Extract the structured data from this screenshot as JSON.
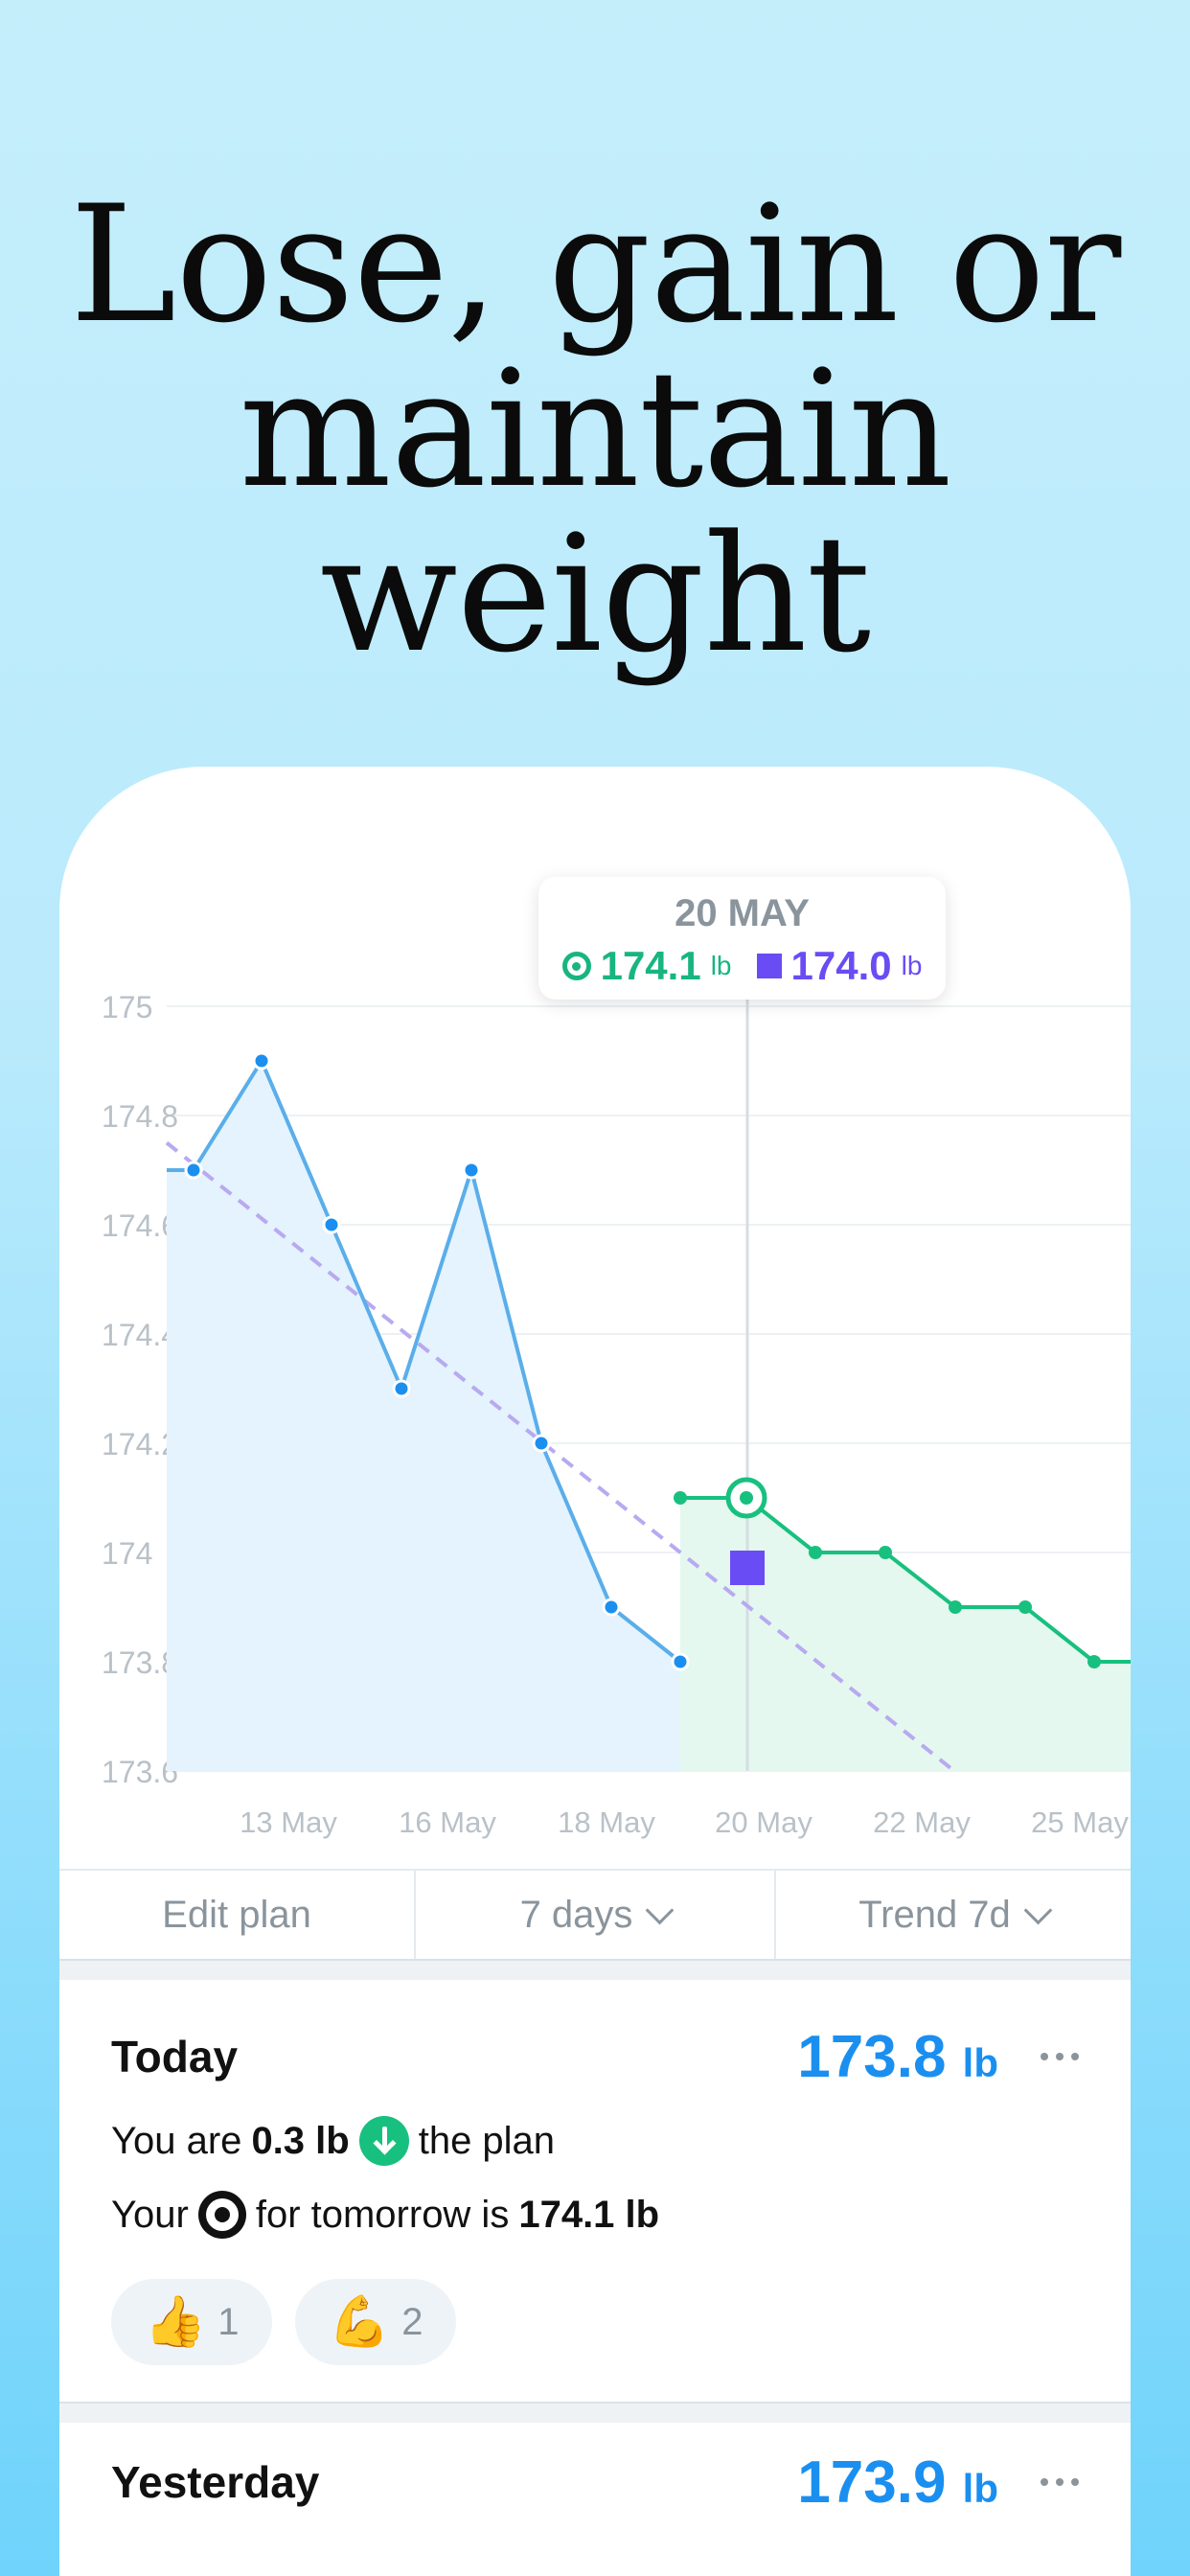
{
  "headline": [
    "Lose, gain or",
    "maintain",
    "weight"
  ],
  "colors": {
    "trend": "#18c07f",
    "weight_line": "#5aaeea",
    "plan_line": "#b8a9f0",
    "marker": "#6a4cf4",
    "accent_value": "#1a8ff0"
  },
  "tooltip": {
    "date": "20 MAY",
    "trend_value": "174.1",
    "trend_unit": "lb",
    "plan_value": "174.0",
    "plan_unit": "lb",
    "trend_icon": "target-icon",
    "plan_icon": "square-icon"
  },
  "chart_data": {
    "type": "line",
    "y_ticks": [
      "175",
      "174.8",
      "174.6",
      "174.4",
      "174.2",
      "174",
      "173.8",
      "173.6"
    ],
    "ylim": [
      173.6,
      175.0
    ],
    "x_tick_labels": [
      "13 May",
      "16 May",
      "18 May",
      "20 May",
      "22 May",
      "25 May"
    ],
    "grid": true,
    "series": [
      {
        "values": [
          174.7,
          174.7,
          174.9,
          174.6,
          174.3,
          174.7,
          174.2,
          173.9,
          173.8
        ]
      },
      {
        "values": [
          174.1,
          174.1,
          174.0,
          174.0,
          173.9,
          173.9,
          173.8,
          173.8
        ]
      },
      {
        "values": [
          174.75,
          173.6
        ]
      }
    ],
    "selected": {
      "date": "20 May",
      "trend": 174.1,
      "plan": 174.0
    }
  },
  "controls": {
    "edit_plan": "Edit plan",
    "range": "7 days",
    "trend": "Trend 7d"
  },
  "today": {
    "label": "Today",
    "weight": "173.8",
    "unit": "lb",
    "line1_pre": "You are",
    "line1_value": "0.3 lb",
    "line1_post": "the plan",
    "line2_pre": "Your",
    "line2_mid": "for tomorrow is",
    "line2_value": "174.1 lb",
    "reactions": [
      {
        "emoji": "👍",
        "count": "1"
      },
      {
        "emoji": "💪",
        "count": "2"
      }
    ]
  },
  "yesterday": {
    "label": "Yesterday",
    "weight": "173.9",
    "unit": "lb"
  }
}
